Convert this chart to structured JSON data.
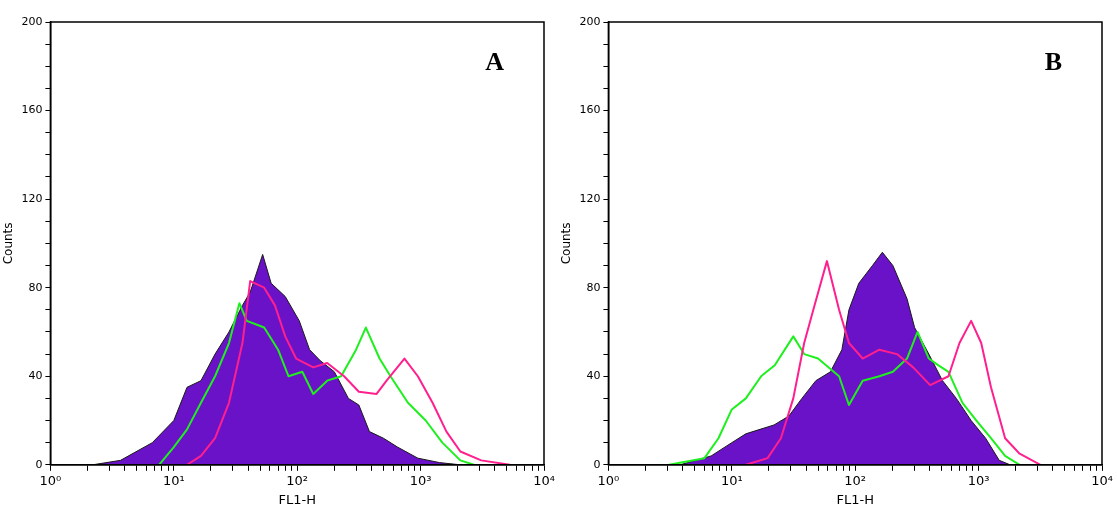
{
  "chart_data": [
    {
      "type": "line",
      "annotations": [
        "A"
      ],
      "xlabel": "FL1-H",
      "ylabel": "Counts",
      "log": "x",
      "grid": false,
      "legend": false,
      "marker": "none",
      "xlim": [
        1,
        10000
      ],
      "ylim": [
        0,
        200
      ],
      "xticks": [
        {
          "value": 1,
          "label": "10⁰"
        },
        {
          "value": 2,
          "label": null
        },
        {
          "value": 3,
          "label": null
        },
        {
          "value": 4,
          "label": null
        },
        {
          "value": 5,
          "label": null
        },
        {
          "value": 6,
          "label": null
        },
        {
          "value": 7,
          "label": null
        },
        {
          "value": 8,
          "label": null
        },
        {
          "value": 9,
          "label": null
        },
        {
          "value": 10,
          "label": "10¹"
        },
        {
          "value": 20,
          "label": null
        },
        {
          "value": 30,
          "label": null
        },
        {
          "value": 40,
          "label": null
        },
        {
          "value": 50,
          "label": null
        },
        {
          "value": 60,
          "label": null
        },
        {
          "value": 70,
          "label": null
        },
        {
          "value": 80,
          "label": null
        },
        {
          "value": 90,
          "label": null
        },
        {
          "value": 100,
          "label": "10²"
        },
        {
          "value": 200,
          "label": null
        },
        {
          "value": 300,
          "label": null
        },
        {
          "value": 400,
          "label": null
        },
        {
          "value": 500,
          "label": null
        },
        {
          "value": 600,
          "label": null
        },
        {
          "value": 700,
          "label": null
        },
        {
          "value": 800,
          "label": null
        },
        {
          "value": 900,
          "label": null
        },
        {
          "value": 1000,
          "label": "10³"
        },
        {
          "value": 2000,
          "label": null
        },
        {
          "value": 3000,
          "label": null
        },
        {
          "value": 4000,
          "label": null
        },
        {
          "value": 5000,
          "label": null
        },
        {
          "value": 6000,
          "label": null
        },
        {
          "value": 7000,
          "label": null
        },
        {
          "value": 8000,
          "label": null
        },
        {
          "value": 9000,
          "label": null
        },
        {
          "value": 10000,
          "label": "10⁴"
        }
      ],
      "yticks": [
        0,
        {
          "value": 10,
          "label": null
        },
        {
          "value": 20,
          "label": null
        },
        {
          "value": 30,
          "label": null
        },
        40,
        {
          "value": 50,
          "label": null
        },
        {
          "value": 60,
          "label": null
        },
        {
          "value": 70,
          "label": null
        },
        80,
        {
          "value": 90,
          "label": null
        },
        {
          "value": 100,
          "label": null
        },
        {
          "value": 110,
          "label": null
        },
        120,
        {
          "value": 130,
          "label": null
        },
        {
          "value": 140,
          "label": null
        },
        {
          "value": 150,
          "label": null
        },
        160,
        {
          "value": 170,
          "label": null
        },
        {
          "value": 180,
          "label": null
        },
        {
          "value": 190,
          "label": null
        },
        200
      ],
      "series": [
        {
          "type": "area",
          "color": "#6a12c8",
          "x": [
            2.2,
            3.7,
            6.7,
            10,
            12.8,
            16.6,
            21.6,
            28,
            36,
            41.6,
            52.5,
            61.5,
            80,
            104,
            126,
            154,
            200,
            260,
            316,
            385,
            500,
            650,
            950,
            1420,
            2100
          ],
          "values": [
            0,
            2,
            10,
            20,
            35,
            38,
            50,
            60,
            72,
            78,
            95,
            82,
            76,
            65,
            52,
            47,
            42,
            30,
            27,
            15,
            12,
            8,
            3,
            1,
            0
          ]
        },
        {
          "type": "line",
          "color": "#1ef01e",
          "x": [
            7.6,
            10,
            12.8,
            16.6,
            21.6,
            28,
            34,
            39,
            54,
            70,
            85,
            110,
            135,
            175,
            227,
            300,
            360,
            465,
            570,
            790,
            1100,
            1500,
            2100,
            2700
          ],
          "values": [
            0,
            8,
            16,
            28,
            40,
            55,
            73,
            65,
            62,
            52,
            40,
            42,
            32,
            38,
            40,
            52,
            62,
            48,
            40,
            28,
            20,
            10,
            2,
            0
          ]
        },
        {
          "type": "line",
          "color": "#ff1f8e",
          "x": [
            12.8,
            16.6,
            21.6,
            28,
            36,
            41.6,
            54,
            66,
            80,
            98,
            135,
            175,
            240,
            316,
            440,
            530,
            740,
            950,
            1250,
            1620,
            2100,
            3100,
            5300
          ],
          "values": [
            0,
            4,
            12,
            28,
            55,
            83,
            80,
            72,
            58,
            48,
            44,
            46,
            40,
            33,
            32,
            38,
            48,
            40,
            28,
            15,
            6,
            2,
            0
          ]
        }
      ]
    },
    {
      "type": "line",
      "annotations": [
        "B"
      ],
      "xlabel": "FL1-H",
      "ylabel": "Counts",
      "log": "x",
      "grid": false,
      "legend": false,
      "marker": "none",
      "xlim": [
        1,
        10000
      ],
      "ylim": [
        0,
        200
      ],
      "xticks": [
        {
          "value": 1,
          "label": "10⁰"
        },
        {
          "value": 2,
          "label": null
        },
        {
          "value": 3,
          "label": null
        },
        {
          "value": 4,
          "label": null
        },
        {
          "value": 5,
          "label": null
        },
        {
          "value": 6,
          "label": null
        },
        {
          "value": 7,
          "label": null
        },
        {
          "value": 8,
          "label": null
        },
        {
          "value": 9,
          "label": null
        },
        {
          "value": 10,
          "label": "10¹"
        },
        {
          "value": 20,
          "label": null
        },
        {
          "value": 30,
          "label": null
        },
        {
          "value": 40,
          "label": null
        },
        {
          "value": 50,
          "label": null
        },
        {
          "value": 60,
          "label": null
        },
        {
          "value": 70,
          "label": null
        },
        {
          "value": 80,
          "label": null
        },
        {
          "value": 90,
          "label": null
        },
        {
          "value": 100,
          "label": "10²"
        },
        {
          "value": 200,
          "label": null
        },
        {
          "value": 300,
          "label": null
        },
        {
          "value": 400,
          "label": null
        },
        {
          "value": 500,
          "label": null
        },
        {
          "value": 600,
          "label": null
        },
        {
          "value": 700,
          "label": null
        },
        {
          "value": 800,
          "label": null
        },
        {
          "value": 900,
          "label": null
        },
        {
          "value": 1000,
          "label": "10³"
        },
        {
          "value": 2000,
          "label": null
        },
        {
          "value": 3000,
          "label": null
        },
        {
          "value": 4000,
          "label": null
        },
        {
          "value": 5000,
          "label": null
        },
        {
          "value": 6000,
          "label": null
        },
        {
          "value": 7000,
          "label": null
        },
        {
          "value": 8000,
          "label": null
        },
        {
          "value": 9000,
          "label": null
        },
        {
          "value": 10000,
          "label": "10⁴"
        }
      ],
      "yticks": [
        0,
        {
          "value": 10,
          "label": null
        },
        {
          "value": 20,
          "label": null
        },
        {
          "value": 30,
          "label": null
        },
        40,
        {
          "value": 50,
          "label": null
        },
        {
          "value": 60,
          "label": null
        },
        {
          "value": 70,
          "label": null
        },
        80,
        {
          "value": 90,
          "label": null
        },
        {
          "value": 100,
          "label": null
        },
        {
          "value": 110,
          "label": null
        },
        120,
        {
          "value": 130,
          "label": null
        },
        {
          "value": 140,
          "label": null
        },
        {
          "value": 150,
          "label": null
        },
        160,
        {
          "value": 170,
          "label": null
        },
        {
          "value": 180,
          "label": null
        },
        {
          "value": 190,
          "label": null
        },
        200
      ],
      "series": [
        {
          "type": "area",
          "color": "#6a12c8",
          "x": [
            3.8,
            6.8,
            10,
            13,
            22,
            29,
            37,
            48,
            63,
            78,
            89,
            107,
            138,
            166,
            202,
            263,
            303,
            395,
            510,
            660,
            870,
            1140,
            1470,
            1800
          ],
          "values": [
            0,
            4,
            10,
            14,
            18,
            22,
            30,
            38,
            42,
            52,
            70,
            82,
            90,
            96,
            90,
            75,
            62,
            50,
            38,
            30,
            20,
            12,
            2,
            0
          ]
        },
        {
          "type": "line",
          "color": "#1ef01e",
          "x": [
            3.1,
            6,
            7.8,
            10,
            13,
            17.3,
            22.3,
            31.5,
            38.6,
            50,
            74,
            89,
            115,
            157,
            202,
            263,
            320,
            395,
            470,
            570,
            740,
            960,
            1260,
            1640,
            2150
          ],
          "values": [
            0,
            3,
            12,
            25,
            30,
            40,
            45,
            58,
            50,
            48,
            40,
            27,
            38,
            40,
            42,
            48,
            60,
            48,
            45,
            42,
            28,
            20,
            12,
            4,
            0
          ]
        },
        {
          "type": "line",
          "color": "#ff1f8e",
          "x": [
            13,
            19.5,
            25,
            31.5,
            38.6,
            46.8,
            59,
            74,
            89,
            115,
            157,
            218,
            295,
            405,
            570,
            700,
            870,
            1050,
            1260,
            1640,
            2150,
            3170
          ],
          "values": [
            0,
            3,
            12,
            30,
            55,
            72,
            92,
            70,
            55,
            48,
            52,
            50,
            44,
            36,
            40,
            55,
            65,
            55,
            35,
            12,
            5,
            0
          ]
        }
      ]
    }
  ]
}
